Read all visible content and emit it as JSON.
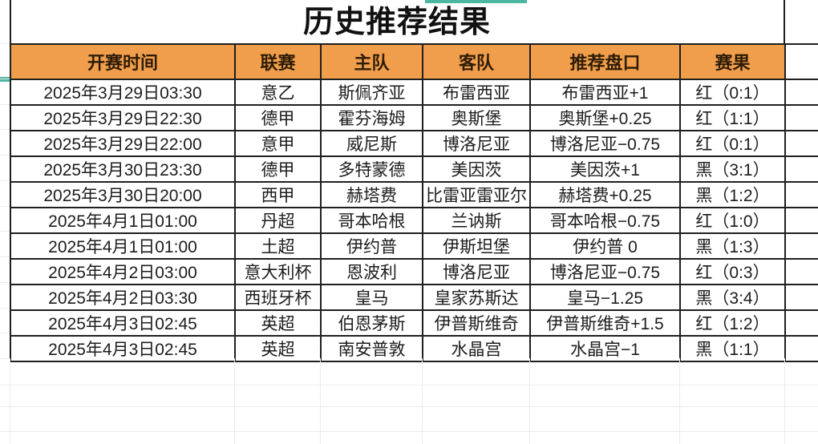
{
  "title": "历史推荐结果",
  "columns": [
    "开赛时间",
    "联赛",
    "主队",
    "客队",
    "推荐盘口",
    "赛果"
  ],
  "rows": [
    {
      "time": "2025年3月29日03:30",
      "league": "意乙",
      "home": "斯佩齐亚",
      "away": "布雷西亚",
      "handicap": "布雷西亚+1",
      "result": "红（0:1）",
      "result_type": "red"
    },
    {
      "time": "2025年3月29日22:30",
      "league": "德甲",
      "home": "霍芬海姆",
      "away": "奥斯堡",
      "handicap": "奥斯堡+0.25",
      "result": "红（1:1）",
      "result_type": "red"
    },
    {
      "time": "2025年3月29日22:00",
      "league": "意甲",
      "home": "威尼斯",
      "away": "博洛尼亚",
      "handicap": "博洛尼亚−0.75",
      "result": "红（0:1）",
      "result_type": "red"
    },
    {
      "time": "2025年3月30日23:30",
      "league": "德甲",
      "home": "多特蒙德",
      "away": "美因茨",
      "handicap": "美因茨+1",
      "result": "黑（3:1）",
      "result_type": "black"
    },
    {
      "time": "2025年3月30日20:00",
      "league": "西甲",
      "home": "赫塔费",
      "away": "比雷亚雷亚尔",
      "handicap": "赫塔费+0.25",
      "result": "黑（1:2）",
      "result_type": "black"
    },
    {
      "time": "2025年4月1日01:00",
      "league": "丹超",
      "home": "哥本哈根",
      "away": "兰讷斯",
      "handicap": "哥本哈根−0.75",
      "result": "红（1:0）",
      "result_type": "red"
    },
    {
      "time": "2025年4月1日01:00",
      "league": "土超",
      "home": "伊约普",
      "away": "伊斯坦堡",
      "handicap": "伊约普 0",
      "result": "黑（1:3）",
      "result_type": "black"
    },
    {
      "time": "2025年4月2日03:00",
      "league": "意大利杯",
      "home": "恩波利",
      "away": "博洛尼亚",
      "handicap": "博洛尼亚−0.75",
      "result": "红（0:3）",
      "result_type": "red"
    },
    {
      "time": "2025年4月2日03:30",
      "league": "西班牙杯",
      "home": "皇马",
      "away": "皇家苏斯达",
      "handicap": "皇马−1.25",
      "result": "黑（3:4）",
      "result_type": "black"
    },
    {
      "time": "2025年4月3日02:45",
      "league": "英超",
      "home": "伯恩茅斯",
      "away": "伊普斯维奇",
      "handicap": "伊普斯维奇+1.5",
      "result": "红（1:2）",
      "result_type": "red"
    },
    {
      "time": "2025年4月3日02:45",
      "league": "英超",
      "home": "南安普敦",
      "away": "水晶宫",
      "handicap": "水晶宫−1",
      "result": "黑（1:1）",
      "result_type": "black"
    }
  ],
  "colors": {
    "header_orange": "#f09e4b",
    "result_red": "#ae2a22",
    "result_black": "#1c1c1c",
    "border_black": "#1f1f1f",
    "accent_teal": "#4db6a0"
  }
}
